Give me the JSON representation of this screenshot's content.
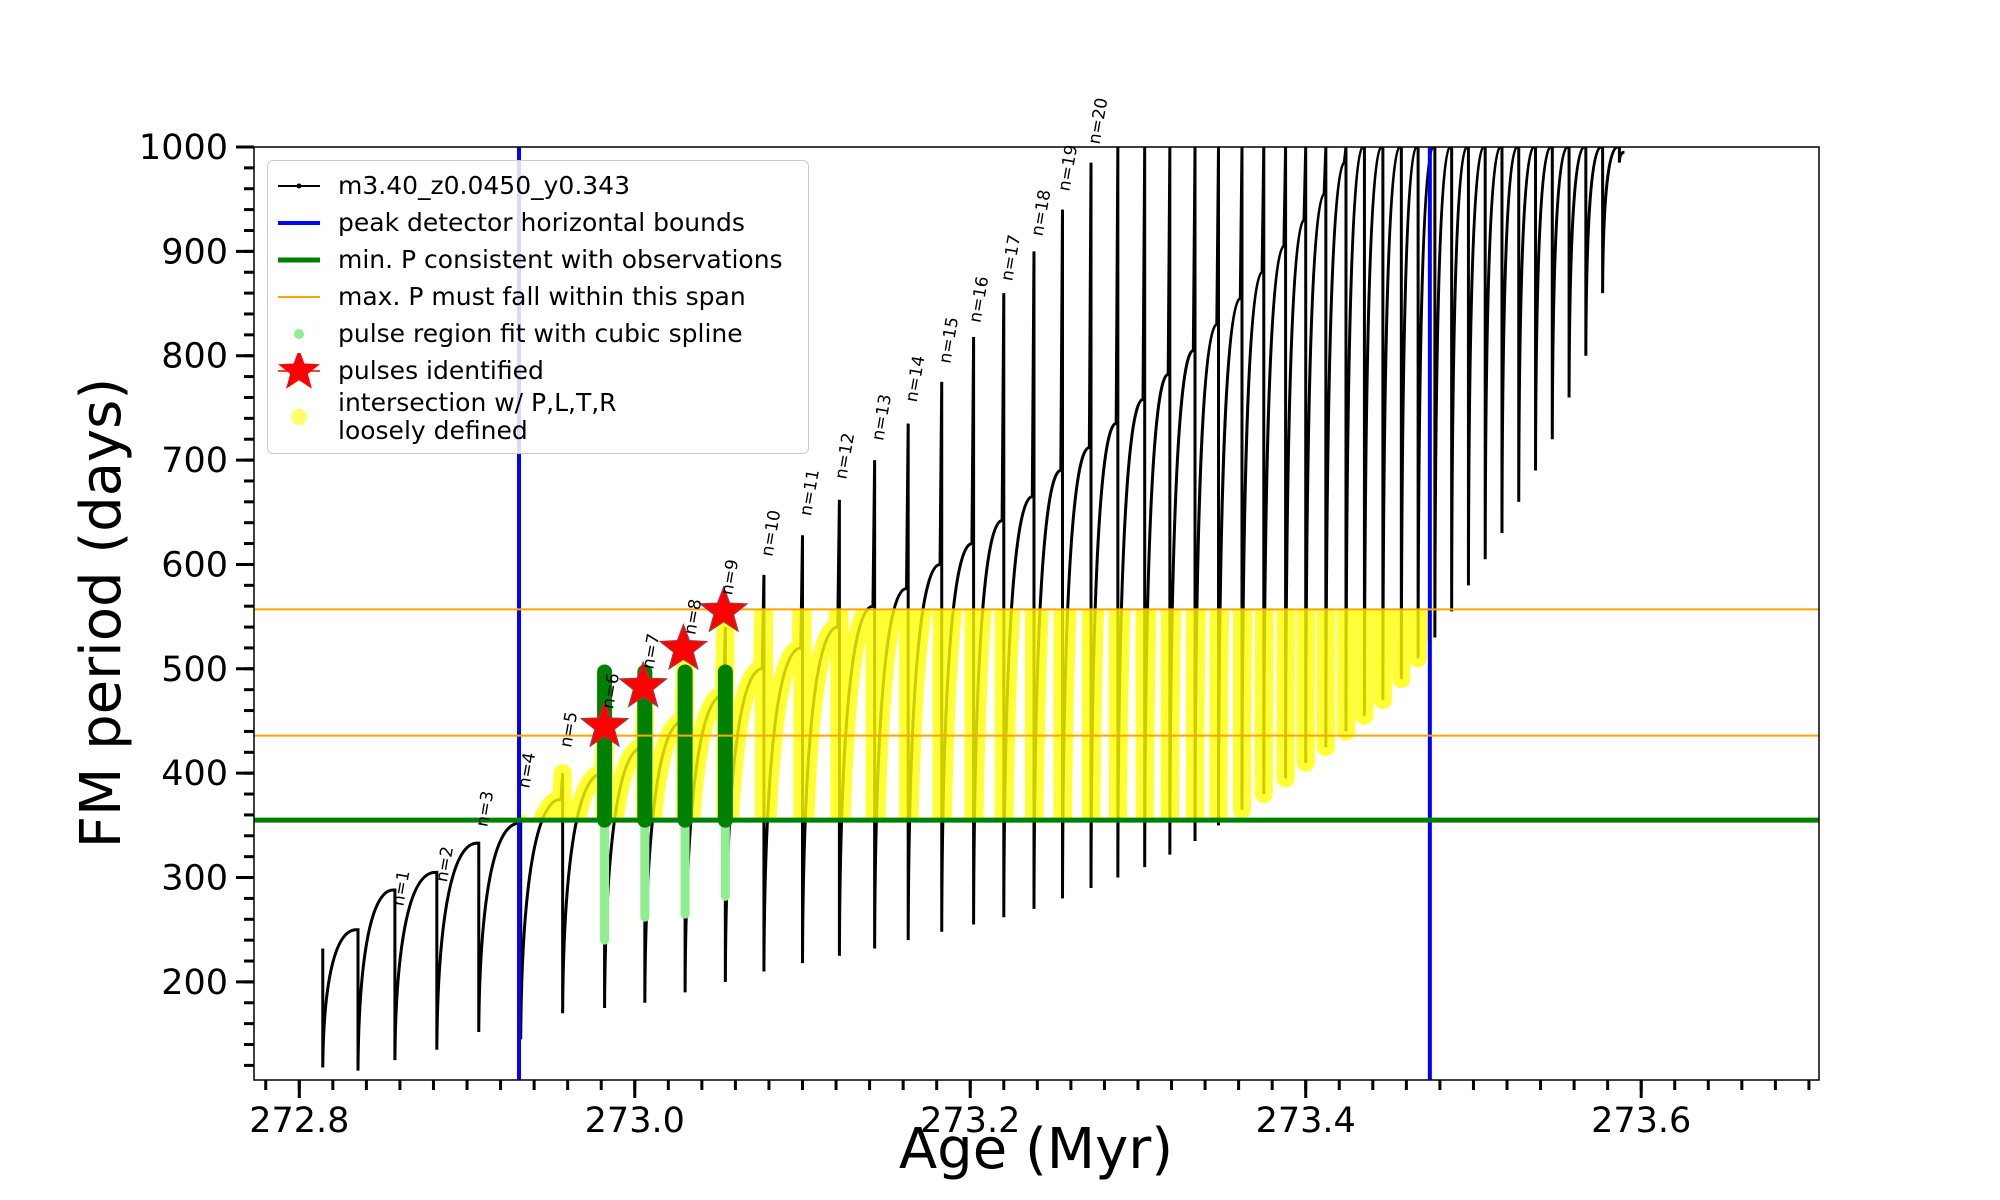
{
  "chart_data": {
    "type": "line",
    "xlabel": "Age (Myr)",
    "ylabel": "FM period (days)",
    "xlim": [
      272.773,
      273.706
    ],
    "ylim": [
      106,
      1000
    ],
    "xticks": [
      272.8,
      {
        "value": 273,
        "label": "273.0"
      },
      273.2,
      273.4,
      273.6
    ],
    "yticks": [
      200,
      300,
      400,
      500,
      600,
      700,
      800,
      900,
      1000
    ],
    "xminor": 0.02,
    "yminor": 20,
    "legend": "upper left",
    "series": [
      {
        "name": "m3.40_z0.0450_y0.343",
        "color": "#000000",
        "x": [
          272.814,
          272.814,
          272.834,
          272.835,
          272.835,
          272.856,
          272.857,
          272.857,
          272.881,
          272.882,
          272.882,
          272.906,
          272.907,
          272.907,
          272.931,
          272.932,
          272.932,
          272.956,
          272.957,
          272.957,
          272.981,
          272.982,
          272.982,
          273.005,
          273.006,
          273.006,
          273.029,
          273.03,
          273.03,
          273.053,
          273.054,
          273.054,
          273.076,
          273.077,
          273.077,
          273.099,
          273.1,
          273.1,
          273.121,
          273.122,
          273.122,
          273.142,
          273.143,
          273.143,
          273.162,
          273.163,
          273.163,
          273.182,
          273.183,
          273.183,
          273.201,
          273.202,
          273.202,
          273.219,
          273.22,
          273.22,
          273.237,
          273.238,
          273.238,
          273.254,
          273.255,
          273.255,
          273.271,
          273.272,
          273.272,
          273.287,
          273.288,
          273.288,
          273.303,
          273.304,
          273.304,
          273.318,
          273.319,
          273.319,
          273.333,
          273.334,
          273.334,
          273.347,
          273.348,
          273.348,
          273.361,
          273.362,
          273.362,
          273.374,
          273.375,
          273.375,
          273.387,
          273.388,
          273.388,
          273.399,
          273.4,
          273.4,
          273.411,
          273.412,
          273.412,
          273.423,
          273.424,
          273.424,
          273.434,
          273.435,
          273.435,
          273.445,
          273.446,
          273.446,
          273.456,
          273.457,
          273.457,
          273.466,
          273.467,
          273.467,
          273.476,
          273.477,
          273.477,
          273.486,
          273.487,
          273.487,
          273.496,
          273.497,
          273.497,
          273.506,
          273.507,
          273.507,
          273.516,
          273.517,
          273.517,
          273.526,
          273.527,
          273.527,
          273.536,
          273.537,
          273.537,
          273.546,
          273.547,
          273.547,
          273.556,
          273.557,
          273.557,
          273.566,
          273.567,
          273.567,
          273.576,
          273.577,
          273.577,
          273.586,
          273.587,
          273.587,
          273.59
        ],
        "y": [
          232,
          118,
          250,
          250,
          115,
          288,
          288,
          125,
          305,
          305,
          135,
          333,
          333,
          152,
          352,
          352,
          145,
          375,
          400,
          170,
          400,
          430,
          175,
          425,
          460,
          180,
          450,
          500,
          190,
          475,
          540,
          200,
          500,
          590,
          210,
          520,
          628,
          218,
          540,
          662,
          225,
          560,
          700,
          232,
          577,
          735,
          240,
          600,
          775,
          248,
          620,
          818,
          255,
          642,
          860,
          262,
          665,
          900,
          270,
          690,
          940,
          280,
          712,
          985,
          290,
          735,
          1000,
          300,
          758,
          1000,
          310,
          782,
          1000,
          322,
          805,
          1000,
          335,
          830,
          1000,
          350,
          855,
          1000,
          365,
          880,
          1000,
          380,
          905,
          1000,
          395,
          930,
          1000,
          410,
          955,
          1000,
          425,
          985,
          1000,
          440,
          1000,
          1000,
          455,
          1000,
          1000,
          470,
          1000,
          1000,
          490,
          1000,
          1000,
          510,
          1000,
          1000,
          530,
          1000,
          1000,
          555,
          1000,
          1000,
          580,
          1000,
          1000,
          605,
          1000,
          1000,
          630,
          1000,
          1000,
          660,
          1000,
          1000,
          690,
          1000,
          1000,
          720,
          1000,
          1000,
          760,
          1000,
          1000,
          800,
          1000,
          1000,
          860,
          1000,
          1000,
          985,
          995
        ]
      },
      {
        "name": "peak detector horizontal bounds",
        "color": "#0000ff",
        "x": [
          272.931,
          273.474
        ]
      },
      {
        "name": "min. P consistent with observations",
        "color": "#008000",
        "y": [
          355
        ]
      },
      {
        "name": "max. P must fall within this span",
        "color": "#ffa500",
        "y": [
          436,
          557
        ]
      },
      {
        "name": "pulse region fit with cubic spline",
        "color": "#90ee90",
        "fit_color": "#008000",
        "x": [
          272.982,
          273.006,
          273.03,
          273.054
        ],
        "y_low": [
          240,
          262,
          265,
          282
        ],
        "y_high": [
          497,
          497,
          497,
          497
        ]
      },
      {
        "name": "pulses identified",
        "color": "#ff0000",
        "x": [
          272.982,
          273.005,
          273.029,
          273.053
        ],
        "y": [
          445,
          483,
          519,
          555
        ]
      },
      {
        "name": "intersection w/ P,L,T,R\nloosely defined",
        "color": "#ffff00"
      }
    ],
    "annotations": [
      {
        "text": "n=1",
        "x": 272.862,
        "y": 272
      },
      {
        "text": "n=2",
        "x": 272.888,
        "y": 295
      },
      {
        "text": "n=3",
        "x": 272.912,
        "y": 348
      },
      {
        "text": "n=4",
        "x": 272.937,
        "y": 385
      },
      {
        "text": "n=5",
        "x": 272.962,
        "y": 424
      },
      {
        "text": "n=6",
        "x": 272.987,
        "y": 461
      },
      {
        "text": "n=7",
        "x": 273.011,
        "y": 499
      },
      {
        "text": "n=8",
        "x": 273.036,
        "y": 532
      },
      {
        "text": "n=9",
        "x": 273.058,
        "y": 570
      },
      {
        "text": "n=10",
        "x": 273.082,
        "y": 607
      },
      {
        "text": "n=11",
        "x": 273.105,
        "y": 646
      },
      {
        "text": "n=12",
        "x": 273.126,
        "y": 681
      },
      {
        "text": "n=13",
        "x": 273.148,
        "y": 718
      },
      {
        "text": "n=14",
        "x": 273.168,
        "y": 755
      },
      {
        "text": "n=15",
        "x": 273.188,
        "y": 792
      },
      {
        "text": "n=16",
        "x": 273.206,
        "y": 831
      },
      {
        "text": "n=17",
        "x": 273.225,
        "y": 871
      },
      {
        "text": "n=18",
        "x": 273.243,
        "y": 914
      },
      {
        "text": "n=19",
        "x": 273.259,
        "y": 957
      },
      {
        "text": "n=20",
        "x": 273.277,
        "y": 1002
      }
    ]
  }
}
